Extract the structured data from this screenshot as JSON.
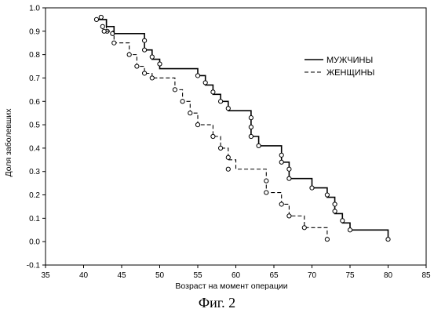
{
  "chart_data": {
    "type": "line",
    "title": "",
    "xlabel": "Возраст на момент операции",
    "ylabel": "Доля заболевших",
    "xlim": [
      35,
      85
    ],
    "ylim": [
      -0.1,
      1.0
    ],
    "xticks": [
      "35",
      "40",
      "45",
      "50",
      "55",
      "60",
      "65",
      "70",
      "75",
      "80",
      "85"
    ],
    "yticks": [
      "-0.1",
      "0.0",
      "0.1",
      "0.2",
      "0.3",
      "0.4",
      "0.5",
      "0.6",
      "0.7",
      "0.8",
      "0.9",
      "1.0"
    ],
    "grid": false,
    "legend_position": "top-right",
    "series": [
      {
        "name": "МУЖЧИНЫ",
        "line_style": "solid",
        "steps": [
          [
            42,
            0.95
          ],
          [
            43,
            0.92
          ],
          [
            44,
            0.89
          ],
          [
            48,
            0.82
          ],
          [
            49,
            0.78
          ],
          [
            50,
            0.74
          ],
          [
            55,
            0.71
          ],
          [
            56,
            0.67
          ],
          [
            57,
            0.63
          ],
          [
            58,
            0.6
          ],
          [
            59,
            0.56
          ],
          [
            62,
            0.52
          ],
          [
            62,
            0.49
          ],
          [
            62,
            0.45
          ],
          [
            63,
            0.41
          ],
          [
            66,
            0.38
          ],
          [
            66,
            0.34
          ],
          [
            67,
            0.3
          ],
          [
            67,
            0.27
          ],
          [
            70,
            0.23
          ],
          [
            72,
            0.19
          ],
          [
            73,
            0.16
          ],
          [
            73,
            0.12
          ],
          [
            74,
            0.08
          ],
          [
            75,
            0.05
          ],
          [
            80,
            0.01
          ]
        ],
        "censored": [
          [
            42.3,
            0.96
          ],
          [
            42.5,
            0.92
          ],
          [
            43.1,
            0.9
          ],
          [
            43.8,
            0.89
          ],
          [
            48,
            0.86
          ],
          [
            48,
            0.82
          ],
          [
            49,
            0.79
          ],
          [
            50,
            0.76
          ],
          [
            55,
            0.71
          ],
          [
            56,
            0.68
          ],
          [
            57,
            0.64
          ],
          [
            58,
            0.6
          ],
          [
            59,
            0.57
          ],
          [
            62,
            0.53
          ],
          [
            62,
            0.49
          ],
          [
            62,
            0.45
          ],
          [
            63,
            0.41
          ],
          [
            66,
            0.37
          ],
          [
            66,
            0.34
          ],
          [
            67,
            0.31
          ],
          [
            67,
            0.27
          ],
          [
            70,
            0.23
          ],
          [
            72,
            0.2
          ],
          [
            73,
            0.16
          ],
          [
            73,
            0.13
          ],
          [
            74,
            0.09
          ],
          [
            75,
            0.05
          ],
          [
            80,
            0.01
          ]
        ]
      },
      {
        "name": "ЖЕНЩИНЫ",
        "line_style": "dashed",
        "steps": [
          [
            42,
            0.95
          ],
          [
            43,
            0.9
          ],
          [
            44,
            0.85
          ],
          [
            46,
            0.8
          ],
          [
            47,
            0.75
          ],
          [
            48,
            0.72
          ],
          [
            49,
            0.7
          ],
          [
            52,
            0.65
          ],
          [
            53,
            0.6
          ],
          [
            54,
            0.55
          ],
          [
            55,
            0.5
          ],
          [
            57,
            0.45
          ],
          [
            58,
            0.4
          ],
          [
            59,
            0.35
          ],
          [
            60,
            0.31
          ],
          [
            64,
            0.26
          ],
          [
            64,
            0.21
          ],
          [
            66,
            0.16
          ],
          [
            67,
            0.11
          ],
          [
            69,
            0.06
          ],
          [
            72,
            0.01
          ]
        ],
        "censored": [
          [
            41.7,
            0.95
          ],
          [
            42.7,
            0.9
          ],
          [
            44,
            0.85
          ],
          [
            46,
            0.8
          ],
          [
            47,
            0.75
          ],
          [
            48,
            0.72
          ],
          [
            49,
            0.7
          ],
          [
            52,
            0.65
          ],
          [
            53,
            0.6
          ],
          [
            54,
            0.55
          ],
          [
            55,
            0.5
          ],
          [
            57,
            0.45
          ],
          [
            58,
            0.4
          ],
          [
            59,
            0.36
          ],
          [
            59,
            0.31
          ],
          [
            64,
            0.26
          ],
          [
            64,
            0.21
          ],
          [
            66,
            0.16
          ],
          [
            67,
            0.11
          ],
          [
            69,
            0.06
          ],
          [
            72,
            0.01
          ]
        ]
      }
    ]
  },
  "caption": "Фиг. 2"
}
